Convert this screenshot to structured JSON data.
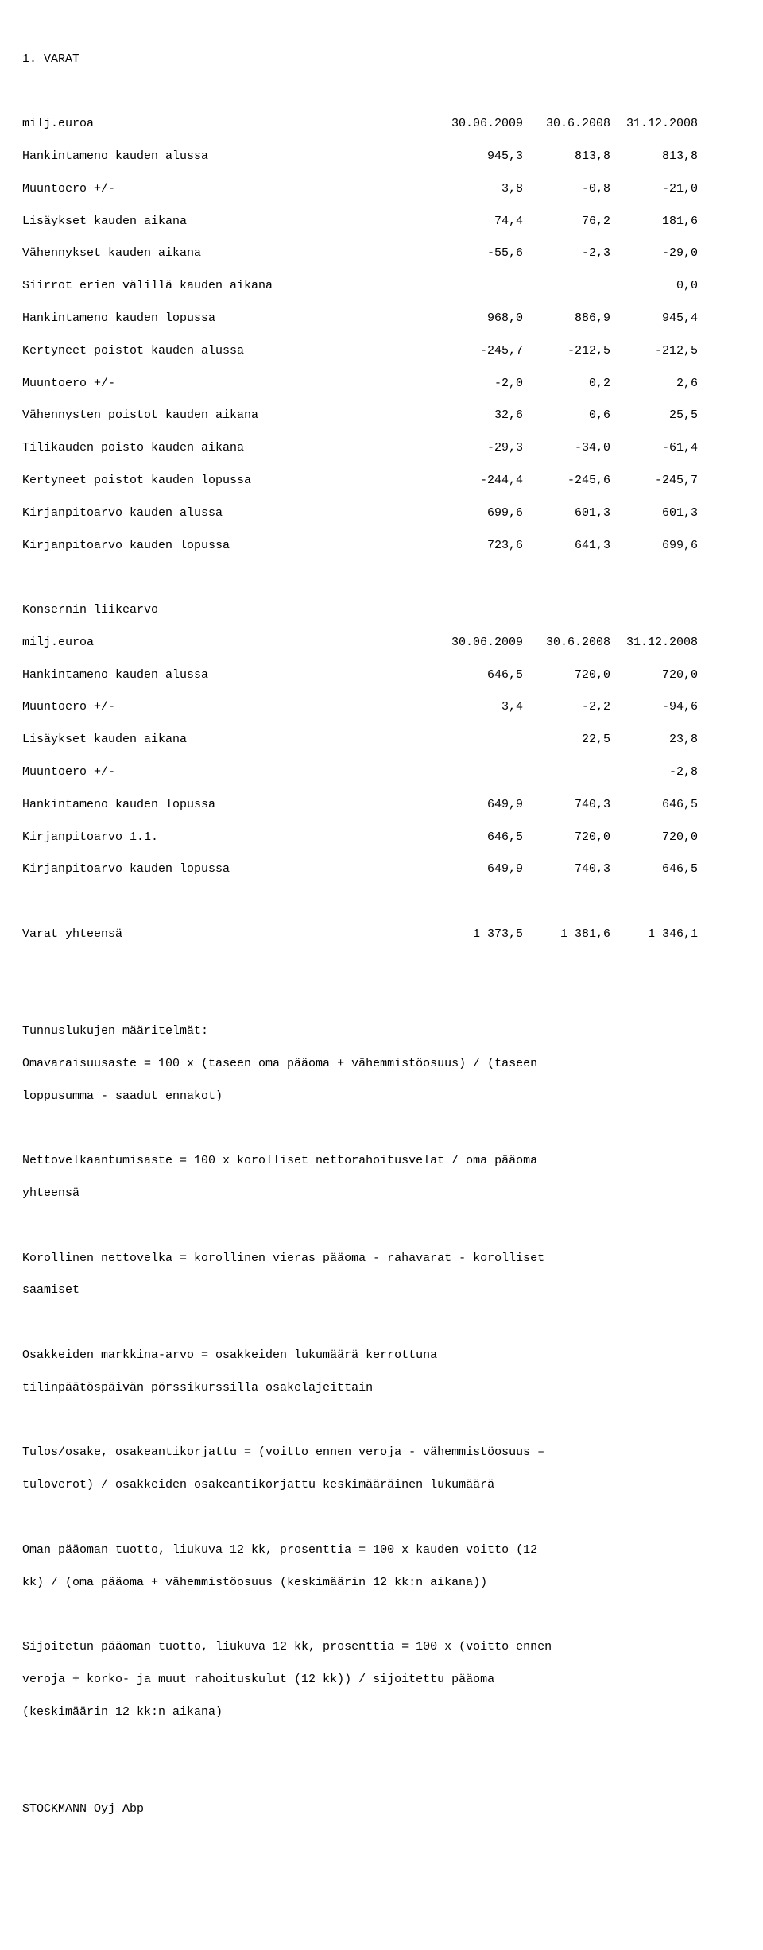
{
  "type": "document",
  "font_family": "Courier New",
  "font_size_pt": 11,
  "background_color": "#ffffff",
  "text_color": "#000000",
  "section1": {
    "heading": "1. VARAT",
    "header": {
      "label": "milj.euroa",
      "c1": "30.06.2009",
      "c2": "30.6.2008",
      "c3": "31.12.2008"
    },
    "rows": [
      {
        "label": "Hankintameno kauden alussa",
        "c1": "945,3",
        "c2": "813,8",
        "c3": "813,8"
      },
      {
        "label": "Muuntoero +/-",
        "c1": "3,8",
        "c2": "-0,8",
        "c3": "-21,0"
      },
      {
        "label": "Lisäykset kauden aikana",
        "c1": "74,4",
        "c2": "76,2",
        "c3": "181,6"
      },
      {
        "label": "Vähennykset kauden aikana",
        "c1": "-55,6",
        "c2": "-2,3",
        "c3": "-29,0"
      },
      {
        "label": "Siirrot erien välillä kauden aikana",
        "c1": "",
        "c2": "",
        "c3": "0,0"
      },
      {
        "label": "Hankintameno kauden lopussa",
        "c1": "968,0",
        "c2": "886,9",
        "c3": "945,4"
      },
      {
        "label": "Kertyneet poistot kauden alussa",
        "c1": "-245,7",
        "c2": "-212,5",
        "c3": "-212,5"
      },
      {
        "label": "Muuntoero +/-",
        "c1": "-2,0",
        "c2": "0,2",
        "c3": "2,6"
      },
      {
        "label": "Vähennysten poistot kauden aikana",
        "c1": "32,6",
        "c2": "0,6",
        "c3": "25,5"
      },
      {
        "label": "Tilikauden poisto kauden aikana",
        "c1": "-29,3",
        "c2": "-34,0",
        "c3": "-61,4"
      },
      {
        "label": "Kertyneet poistot kauden lopussa",
        "c1": "-244,4",
        "c2": "-245,6",
        "c3": "-245,7"
      },
      {
        "label": "Kirjanpitoarvo kauden alussa",
        "c1": "699,6",
        "c2": "601,3",
        "c3": "601,3"
      },
      {
        "label": "Kirjanpitoarvo kauden lopussa",
        "c1": "723,6",
        "c2": "641,3",
        "c3": "699,6"
      }
    ]
  },
  "section2": {
    "heading": "Konsernin liikearvo",
    "header": {
      "label": "milj.euroa",
      "c1": "30.06.2009",
      "c2": "30.6.2008",
      "c3": "31.12.2008"
    },
    "rows": [
      {
        "label": "Hankintameno kauden alussa",
        "c1": "646,5",
        "c2": "720,0",
        "c3": "720,0"
      },
      {
        "label": "Muuntoero +/-",
        "c1": "3,4",
        "c2": "-2,2",
        "c3": "-94,6"
      },
      {
        "label": "Lisäykset kauden aikana",
        "c1": "",
        "c2": "22,5",
        "c3": "23,8"
      },
      {
        "label": "Muuntoero +/-",
        "c1": "",
        "c2": "",
        "c3": "-2,8"
      },
      {
        "label": "Hankintameno kauden lopussa",
        "c1": "649,9",
        "c2": "740,3",
        "c3": "646,5"
      },
      {
        "label": "Kirjanpitoarvo 1.1.",
        "c1": "646,5",
        "c2": "720,0",
        "c3": "720,0"
      },
      {
        "label": "Kirjanpitoarvo kauden lopussa",
        "c1": "649,9",
        "c2": "740,3",
        "c3": "646,5"
      }
    ]
  },
  "totals": {
    "label": "Varat yhteensä",
    "c1": "1 373,5",
    "c2": "1 381,6",
    "c3": "1 346,1"
  },
  "defs": {
    "heading": "Tunnuslukujen määritelmät:",
    "p1a": "Omavaraisuusaste = 100 x (taseen oma pääoma + vähemmistöosuus) / (taseen",
    "p1b": "loppusumma - saadut ennakot)",
    "p2a": "Nettovelkaantumisaste = 100 x korolliset nettorahoitusvelat / oma pääoma",
    "p2b": "yhteensä",
    "p3a": "Korollinen nettovelka = korollinen vieras pääoma - rahavarat - korolliset",
    "p3b": "saamiset",
    "p4a": "Osakkeiden markkina-arvo = osakkeiden lukumäärä kerrottuna",
    "p4b": "tilinpäätöspäivän pörssikurssilla osakelajeittain",
    "p5a": "Tulos/osake, osakeantikorjattu = (voitto ennen veroja - vähemmistöosuus –",
    "p5b": "tuloverot) / osakkeiden osakeantikorjattu keskimääräinen lukumäärä",
    "p6a": "Oman pääoman tuotto, liukuva 12 kk, prosenttia = 100 x kauden voitto (12",
    "p6b": "kk) / (oma pääoma + vähemmistöosuus (keskimäärin 12 kk:n aikana))",
    "p7a": "Sijoitetun pääoman tuotto, liukuva 12 kk, prosenttia = 100 x (voitto ennen",
    "p7b": "veroja + korko- ja muut rahoituskulut (12 kk)) / sijoitettu pääoma",
    "p7c": "(keskimäärin 12 kk:n aikana)"
  },
  "footer": {
    "company": "STOCKMANN Oyj Abp"
  }
}
